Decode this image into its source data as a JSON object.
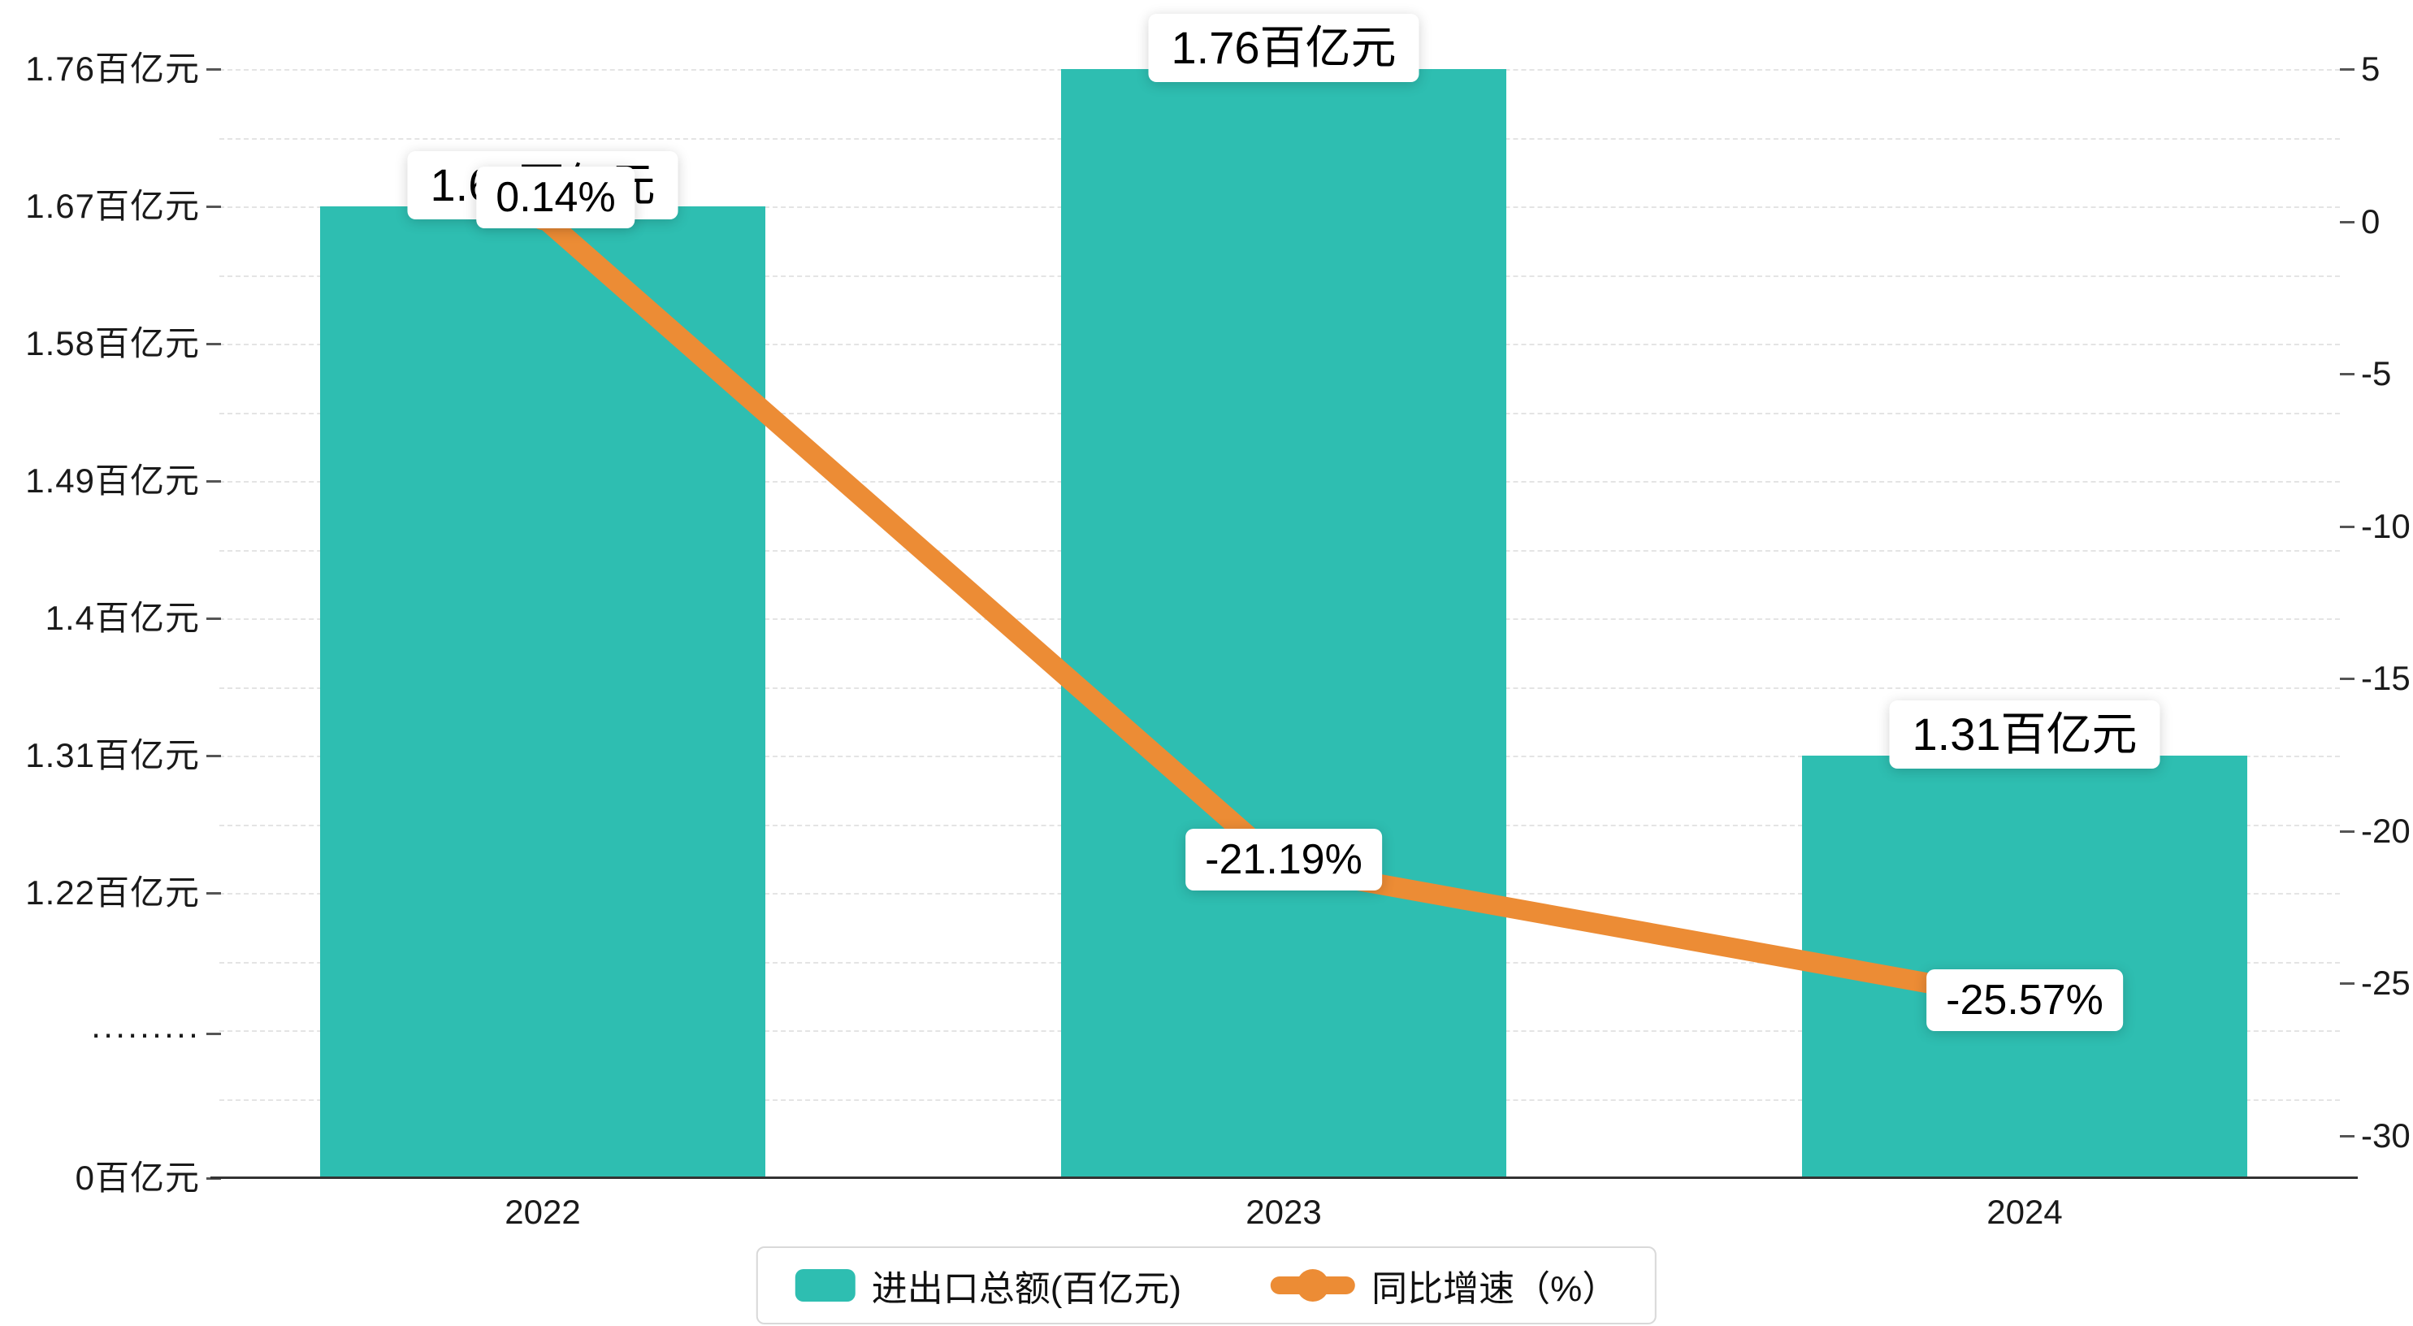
{
  "chart_data": {
    "type": "bar",
    "subtype": "bar-line-combo",
    "categories": [
      "2022",
      "2023",
      "2024"
    ],
    "series": [
      {
        "name": "进出口总额(百亿元)",
        "type": "bar",
        "axis": "left",
        "values": [
          1.67,
          1.76,
          1.31
        ],
        "value_labels": [
          "1.67百亿元",
          "1.76百亿元",
          "1.31百亿元"
        ],
        "color": "#2EBEB1"
      },
      {
        "name": "同比增速（%）",
        "type": "line",
        "axis": "right",
        "values": [
          0.14,
          -21.19,
          -25.57
        ],
        "value_labels": [
          "0.14%",
          "-21.19%",
          "-25.57%"
        ],
        "color": "#EC8C35"
      }
    ],
    "left_axis": {
      "unit": "百亿元",
      "has_break": true,
      "ticks": [
        {
          "label": "1.76百亿元",
          "value": 1.76
        },
        {
          "label": "1.67百亿元",
          "value": 1.67
        },
        {
          "label": "1.58百亿元",
          "value": 1.58
        },
        {
          "label": "1.49百亿元",
          "value": 1.49
        },
        {
          "label": "1.4百亿元",
          "value": 1.4
        },
        {
          "label": "1.31百亿元",
          "value": 1.31
        },
        {
          "label": "1.22百亿元",
          "value": 1.22
        },
        {
          "label": "·········",
          "value": null
        },
        {
          "label": "0百亿元",
          "value": 0
        }
      ]
    },
    "right_axis": {
      "unit": "%",
      "min": -30,
      "max": 5,
      "ticks": [
        {
          "label": "5",
          "value": 5
        },
        {
          "label": "0",
          "value": 0
        },
        {
          "label": "-5",
          "value": -5
        },
        {
          "label": "-10",
          "value": -10
        },
        {
          "label": "-15",
          "value": -15
        },
        {
          "label": "-20",
          "value": -20
        },
        {
          "label": "-25",
          "value": -25
        },
        {
          "label": "-30",
          "value": -30
        }
      ]
    },
    "legend": [
      {
        "label": "进出口总额(百亿元)",
        "marker": "bar-swatch"
      },
      {
        "label": "同比增速（%）",
        "marker": "line-dot"
      }
    ],
    "grid": "horizontal-dashed",
    "legend_position": "bottom-center",
    "background": "#ffffff"
  }
}
